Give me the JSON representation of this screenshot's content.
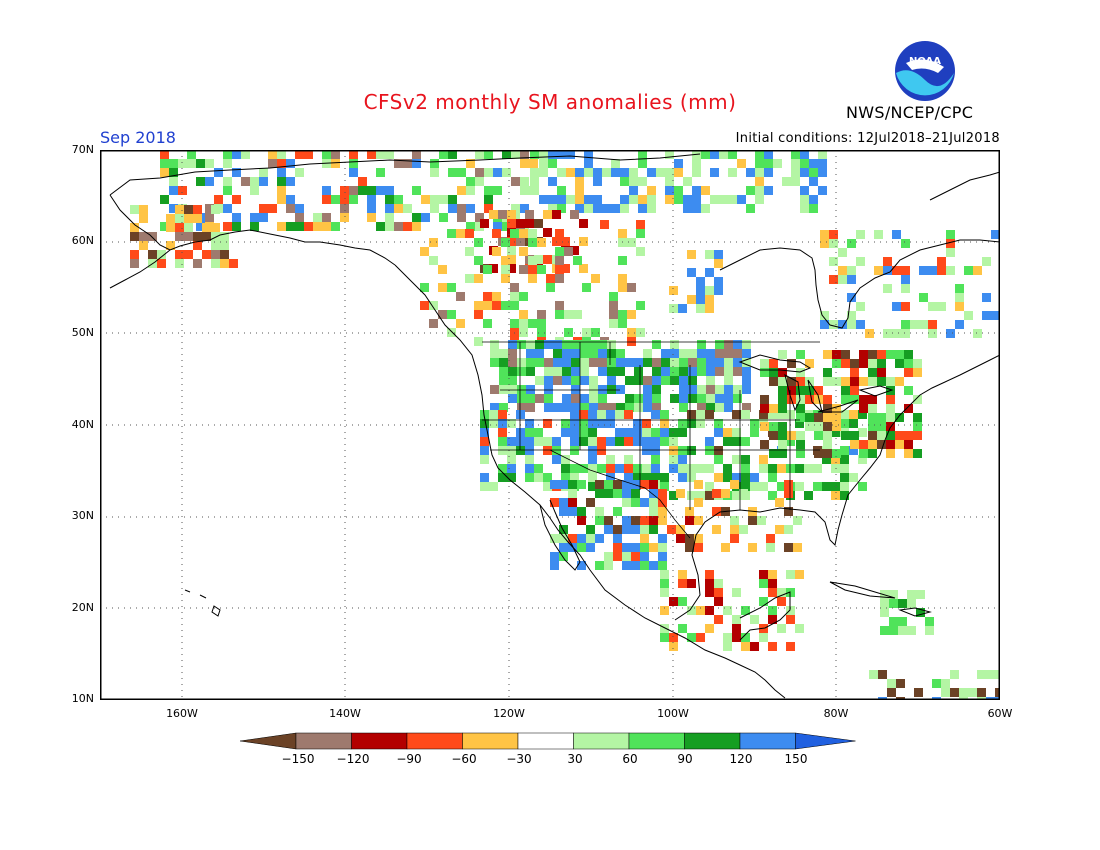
{
  "header": {
    "title": "CFSv2 monthly SM anomalies (mm)",
    "month": "Sep 2018",
    "initial_conditions": "Initial conditions: 12Jul2018–21Jul2018",
    "agency": "NWS/NCEP/CPC",
    "logo_text": "NOAA"
  },
  "map": {
    "lat_labels": [
      "70N",
      "60N",
      "50N",
      "40N",
      "30N",
      "20N",
      "10N"
    ],
    "lon_labels": [
      "160W",
      "140W",
      "120W",
      "100W",
      "80W",
      "60W"
    ],
    "lon_range": [
      -171,
      -60
    ],
    "lat_range": [
      10,
      70
    ]
  },
  "colorbar": {
    "labels": [
      "−150",
      "−120",
      "−90",
      "−60",
      "−30",
      "30",
      "60",
      "90",
      "120",
      "150"
    ],
    "colors": [
      "#6b4226",
      "#9e7a6e",
      "#b30000",
      "#ff4a1a",
      "#ffc445",
      "#ffffff",
      "#b4f5a4",
      "#50e35a",
      "#159e22",
      "#3d8cf0",
      "#2060e0"
    ]
  },
  "colors": {
    "title": "#e8141e",
    "month": "#2040d0"
  }
}
